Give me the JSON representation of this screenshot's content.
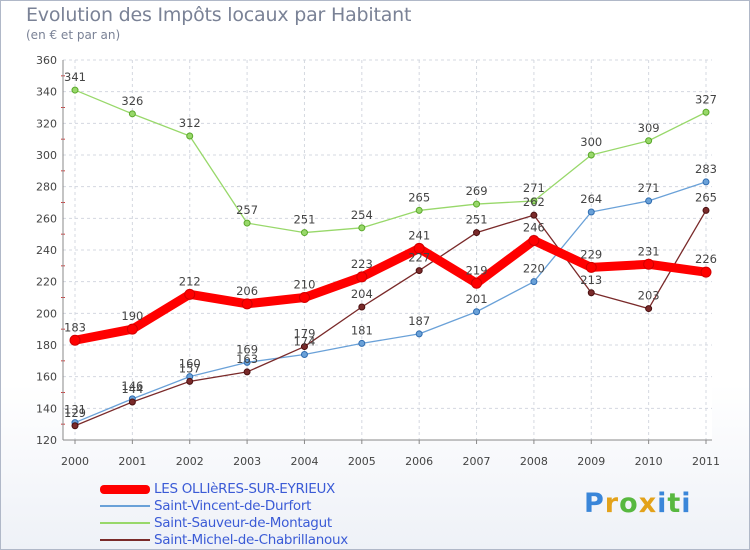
{
  "title": "Evolution des Impôts locaux par Habitant",
  "subtitle": "(en € et par an)",
  "logo": {
    "letters": [
      "P",
      "r",
      "o",
      "x",
      "i",
      "t",
      "i"
    ],
    "colors": [
      "#3a86d9",
      "#e3a21a",
      "#58b840",
      "#e3a21a",
      "#3a86d9",
      "#58b840",
      "#3a86d9"
    ]
  },
  "chart_data": {
    "type": "line",
    "x": [
      "2000",
      "2001",
      "2002",
      "2003",
      "2004",
      "2005",
      "2006",
      "2007",
      "2008",
      "2009",
      "2010",
      "2011"
    ],
    "ylim": [
      120,
      360
    ],
    "yticks": [
      "120",
      "140",
      "160",
      "180",
      "200",
      "220",
      "240",
      "260",
      "280",
      "300",
      "320",
      "340",
      "360"
    ],
    "grid": true,
    "legend_position": "bottom-left",
    "series": [
      {
        "name": "LES OLLIèRES-SUR-EYRIEUX",
        "color": "#ff0000",
        "values": [
          183,
          190,
          212,
          206,
          210,
          223,
          241,
          219,
          246,
          229,
          231,
          226
        ],
        "labels": [
          "183",
          "190",
          "212",
          "206",
          "210",
          "223",
          "241",
          "219",
          "246",
          "229",
          "231",
          "226"
        ]
      },
      {
        "name": "Saint-Vincent-de-Durfort",
        "color": "#6aa1d8",
        "values": [
          131,
          146,
          160,
          169,
          174,
          181,
          187,
          201,
          220,
          264,
          271,
          283
        ],
        "labels": [
          "131",
          "146",
          "160",
          "169",
          "174",
          "181",
          "187",
          "201",
          "220",
          "264",
          "271",
          "283"
        ]
      },
      {
        "name": "Saint-Sauveur-de-Montagut",
        "color": "#98d86a",
        "values": [
          341,
          326,
          312,
          257,
          251,
          254,
          265,
          269,
          271,
          300,
          309,
          327
        ],
        "labels": [
          "341",
          "326",
          "312",
          "257",
          "251",
          "254",
          "265",
          "269",
          "271",
          "300",
          "309",
          "327"
        ]
      },
      {
        "name": "Saint-Michel-de-Chabrillanoux",
        "color": "#7a2a2a",
        "values": [
          129,
          144,
          157,
          163,
          179,
          204,
          227,
          251,
          262,
          213,
          203,
          265
        ],
        "labels": [
          "129",
          "144",
          "157",
          "163",
          "179",
          "204",
          "227",
          "251",
          "262",
          "213",
          "203",
          "265"
        ]
      }
    ]
  }
}
